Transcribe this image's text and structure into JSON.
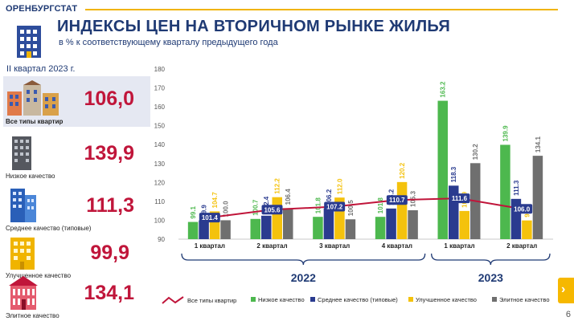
{
  "header": {
    "brand": "ОРЕНБУРГСТАТ",
    "title": "ИНДЕКСЫ ЦЕН НА ВТОРИЧНОМ РЫНКЕ ЖИЛЬЯ",
    "subtitle": "в % к соответствующему кварталу предыдущего года"
  },
  "summary": {
    "period": "II квартал 2023 г.",
    "cards": [
      {
        "label": "Все типы квартир",
        "value": "106,0"
      },
      {
        "label": "Низкое качество",
        "value": "139,9"
      },
      {
        "label": "Среднее качество (типовые)",
        "value": "111,3"
      },
      {
        "label": "Улучшенное качество",
        "value": "99,9"
      },
      {
        "label": "Элитное качество",
        "value": "134,1"
      }
    ]
  },
  "chart_data": {
    "type": "bar",
    "ylim": [
      90,
      180
    ],
    "yticks": [
      90,
      100,
      110,
      120,
      130,
      140,
      150,
      160,
      170,
      180
    ],
    "categories": [
      "1 квартал",
      "2 квартал",
      "3 квартал",
      "4 квартал",
      "1 квартал",
      "2 квартал"
    ],
    "years": [
      {
        "label": "2022",
        "from": 0,
        "to": 3
      },
      {
        "label": "2023",
        "from": 4,
        "to": 5
      }
    ],
    "series": [
      {
        "name": "Низкое качество",
        "color": "#4db84e",
        "values": [
          99.1,
          100.7,
          101.8,
          101.8,
          163.2,
          139.9
        ],
        "labels": [
          "99.1",
          "100.7",
          "101.8",
          "101.8",
          "163.2",
          "139.9"
        ]
      },
      {
        "name": "Среднее качество (типовые)",
        "color": "#2a3b8f",
        "values": [
          99.9,
          102.4,
          106.2,
          106.2,
          118.3,
          111.3
        ],
        "labels": [
          "99.9",
          "102.4",
          "106.2",
          "106.2",
          "118.3",
          "111.3"
        ]
      },
      {
        "name": "Улучшенное качество",
        "color": "#f4c20d",
        "values": [
          104.7,
          112.2,
          112.0,
          120.2,
          104.9,
          99.9
        ],
        "labels": [
          "104.7",
          "112.2",
          "112.0",
          "120.2",
          "104.9",
          "99.9"
        ]
      },
      {
        "name": "Элитное качество",
        "color": "#6f6f6f",
        "values": [
          100.0,
          106.4,
          100.5,
          105.3,
          130.2,
          134.1
        ],
        "labels": [
          "100.0",
          "106.4",
          "100.5",
          "105.3",
          "130.2",
          "134.1"
        ]
      }
    ],
    "line": {
      "name": "Все типы квартир",
      "color": "#c0153a",
      "values": [
        101.4,
        105.6,
        107.2,
        110.7,
        111.6,
        106.0
      ],
      "labels": [
        "101.4",
        "105.6",
        "107.2",
        "110.7",
        "111.6",
        "106.0"
      ]
    }
  },
  "page": {
    "number": "6",
    "nav_arrow": "›"
  }
}
